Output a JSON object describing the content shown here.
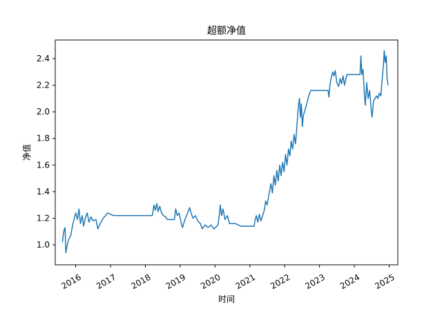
{
  "chart_data": {
    "type": "line",
    "title": "超额净值",
    "xlabel": "时间",
    "ylabel": "净值",
    "grid": false,
    "legend": "none",
    "xlim": [
      "2015-06-01",
      "2025-04-01"
    ],
    "ylim": [
      0.85,
      2.54
    ],
    "x_ticks": [
      "2016",
      "2017",
      "2018",
      "2019",
      "2020",
      "2021",
      "2022",
      "2023",
      "2024",
      "2025"
    ],
    "y_ticks": [
      "1.0",
      "1.2",
      "1.4",
      "1.6",
      "1.8",
      "2.0",
      "2.2",
      "2.4"
    ],
    "series": [
      {
        "color": "#1f77b4",
        "points": [
          [
            "2015-08-15",
            1.02
          ],
          [
            "2015-08-25",
            1.08
          ],
          [
            "2015-09-05",
            1.12
          ],
          [
            "2015-09-12",
            1.13
          ],
          [
            "2015-09-20",
            0.94
          ],
          [
            "2015-10-05",
            1.0
          ],
          [
            "2015-10-20",
            1.04
          ],
          [
            "2015-11-10",
            1.07
          ],
          [
            "2015-12-01",
            1.15
          ],
          [
            "2016-01-01",
            1.24
          ],
          [
            "2016-01-20",
            1.19
          ],
          [
            "2016-02-05",
            1.27
          ],
          [
            "2016-02-20",
            1.16
          ],
          [
            "2016-03-10",
            1.22
          ],
          [
            "2016-03-25",
            1.14
          ],
          [
            "2016-04-10",
            1.2
          ],
          [
            "2016-05-01",
            1.24
          ],
          [
            "2016-05-20",
            1.17
          ],
          [
            "2016-06-10",
            1.21
          ],
          [
            "2016-07-01",
            1.18
          ],
          [
            "2016-08-01",
            1.19
          ],
          [
            "2016-08-20",
            1.12
          ],
          [
            "2016-09-15",
            1.16
          ],
          [
            "2016-10-15",
            1.2
          ],
          [
            "2016-11-10",
            1.22
          ],
          [
            "2016-12-01",
            1.24
          ],
          [
            "2017-01-01",
            1.23
          ],
          [
            "2017-02-01",
            1.22
          ],
          [
            "2018-01-01",
            1.22
          ],
          [
            "2018-03-15",
            1.22
          ],
          [
            "2018-04-01",
            1.3
          ],
          [
            "2018-04-15",
            1.26
          ],
          [
            "2018-05-01",
            1.31
          ],
          [
            "2018-05-15",
            1.25
          ],
          [
            "2018-06-01",
            1.29
          ],
          [
            "2018-06-20",
            1.24
          ],
          [
            "2018-07-10",
            1.22
          ],
          [
            "2018-08-01",
            1.21
          ],
          [
            "2018-08-20",
            1.19
          ],
          [
            "2018-10-01",
            1.19
          ],
          [
            "2018-11-01",
            1.19
          ],
          [
            "2018-11-15",
            1.27
          ],
          [
            "2018-12-01",
            1.22
          ],
          [
            "2018-12-20",
            1.24
          ],
          [
            "2019-01-10",
            1.17
          ],
          [
            "2019-01-25",
            1.13
          ],
          [
            "2019-02-20",
            1.19
          ],
          [
            "2019-03-15",
            1.23
          ],
          [
            "2019-04-10",
            1.28
          ],
          [
            "2019-04-25",
            1.24
          ],
          [
            "2019-05-15",
            1.2
          ],
          [
            "2019-06-10",
            1.22
          ],
          [
            "2019-07-05",
            1.18
          ],
          [
            "2019-08-01",
            1.16
          ],
          [
            "2019-08-20",
            1.12
          ],
          [
            "2019-09-20",
            1.15
          ],
          [
            "2019-10-20",
            1.13
          ],
          [
            "2019-11-20",
            1.15
          ],
          [
            "2019-12-20",
            1.12
          ],
          [
            "2020-01-20",
            1.14
          ],
          [
            "2020-02-01",
            1.15
          ],
          [
            "2020-02-15",
            1.22
          ],
          [
            "2020-02-25",
            1.3
          ],
          [
            "2020-03-10",
            1.22
          ],
          [
            "2020-03-25",
            1.27
          ],
          [
            "2020-04-15",
            1.19
          ],
          [
            "2020-05-10",
            1.22
          ],
          [
            "2020-06-01",
            1.16
          ],
          [
            "2020-06-20",
            1.16
          ],
          [
            "2020-08-01",
            1.16
          ],
          [
            "2020-09-01",
            1.15
          ],
          [
            "2020-10-01",
            1.14
          ],
          [
            "2021-02-15",
            1.14
          ],
          [
            "2021-02-25",
            1.19
          ],
          [
            "2021-03-10",
            1.22
          ],
          [
            "2021-03-25",
            1.17
          ],
          [
            "2021-04-10",
            1.23
          ],
          [
            "2021-04-25",
            1.18
          ],
          [
            "2021-05-10",
            1.21
          ],
          [
            "2021-06-01",
            1.26
          ],
          [
            "2021-06-15",
            1.33
          ],
          [
            "2021-07-01",
            1.3
          ],
          [
            "2021-07-20",
            1.38
          ],
          [
            "2021-08-10",
            1.46
          ],
          [
            "2021-08-25",
            1.39
          ],
          [
            "2021-09-10",
            1.52
          ],
          [
            "2021-09-25",
            1.45
          ],
          [
            "2021-10-10",
            1.56
          ],
          [
            "2021-10-25",
            1.48
          ],
          [
            "2021-11-10",
            1.6
          ],
          [
            "2021-11-25",
            1.52
          ],
          [
            "2021-12-10",
            1.62
          ],
          [
            "2021-12-25",
            1.55
          ],
          [
            "2022-01-10",
            1.68
          ],
          [
            "2022-01-25",
            1.6
          ],
          [
            "2022-02-10",
            1.72
          ],
          [
            "2022-02-25",
            1.67
          ],
          [
            "2022-03-10",
            1.78
          ],
          [
            "2022-03-25",
            1.72
          ],
          [
            "2022-04-10",
            1.83
          ],
          [
            "2022-04-25",
            1.76
          ],
          [
            "2022-05-10",
            1.9
          ],
          [
            "2022-05-25",
            2.05
          ],
          [
            "2022-06-05",
            2.1
          ],
          [
            "2022-06-15",
            1.96
          ],
          [
            "2022-06-25",
            2.06
          ],
          [
            "2022-07-05",
            1.89
          ],
          [
            "2022-07-15",
            1.97
          ],
          [
            "2022-08-01",
            2.01
          ],
          [
            "2022-08-20",
            2.06
          ],
          [
            "2022-09-10",
            2.12
          ],
          [
            "2022-10-01",
            2.16
          ],
          [
            "2022-11-01",
            2.16
          ],
          [
            "2023-04-01",
            2.16
          ],
          [
            "2023-04-10",
            2.11
          ],
          [
            "2023-04-20",
            2.2
          ],
          [
            "2023-05-05",
            2.26
          ],
          [
            "2023-05-20",
            2.3
          ],
          [
            "2023-06-01",
            2.27
          ],
          [
            "2023-06-15",
            2.31
          ],
          [
            "2023-07-01",
            2.22
          ],
          [
            "2023-07-20",
            2.19
          ],
          [
            "2023-08-05",
            2.25
          ],
          [
            "2023-08-20",
            2.21
          ],
          [
            "2023-09-05",
            2.27
          ],
          [
            "2023-09-20",
            2.2
          ],
          [
            "2023-10-15",
            2.28
          ],
          [
            "2023-11-01",
            2.28
          ],
          [
            "2024-03-01",
            2.28
          ],
          [
            "2024-03-10",
            2.42
          ],
          [
            "2024-03-20",
            2.28
          ],
          [
            "2024-04-01",
            2.32
          ],
          [
            "2024-04-15",
            2.14
          ],
          [
            "2024-04-25",
            2.05
          ],
          [
            "2024-05-10",
            2.22
          ],
          [
            "2024-05-25",
            2.1
          ],
          [
            "2024-06-10",
            2.16
          ],
          [
            "2024-06-25",
            2.02
          ],
          [
            "2024-07-05",
            1.96
          ],
          [
            "2024-07-20",
            2.08
          ],
          [
            "2024-08-05",
            2.1
          ],
          [
            "2024-08-20",
            2.12
          ],
          [
            "2024-09-05",
            2.1
          ],
          [
            "2024-09-20",
            2.14
          ],
          [
            "2024-10-05",
            2.12
          ],
          [
            "2024-10-20",
            2.25
          ],
          [
            "2024-11-01",
            2.35
          ],
          [
            "2024-11-10",
            2.46
          ],
          [
            "2024-11-20",
            2.37
          ],
          [
            "2024-12-01",
            2.42
          ],
          [
            "2024-12-10",
            2.25
          ],
          [
            "2024-12-20",
            2.2
          ]
        ]
      }
    ]
  }
}
